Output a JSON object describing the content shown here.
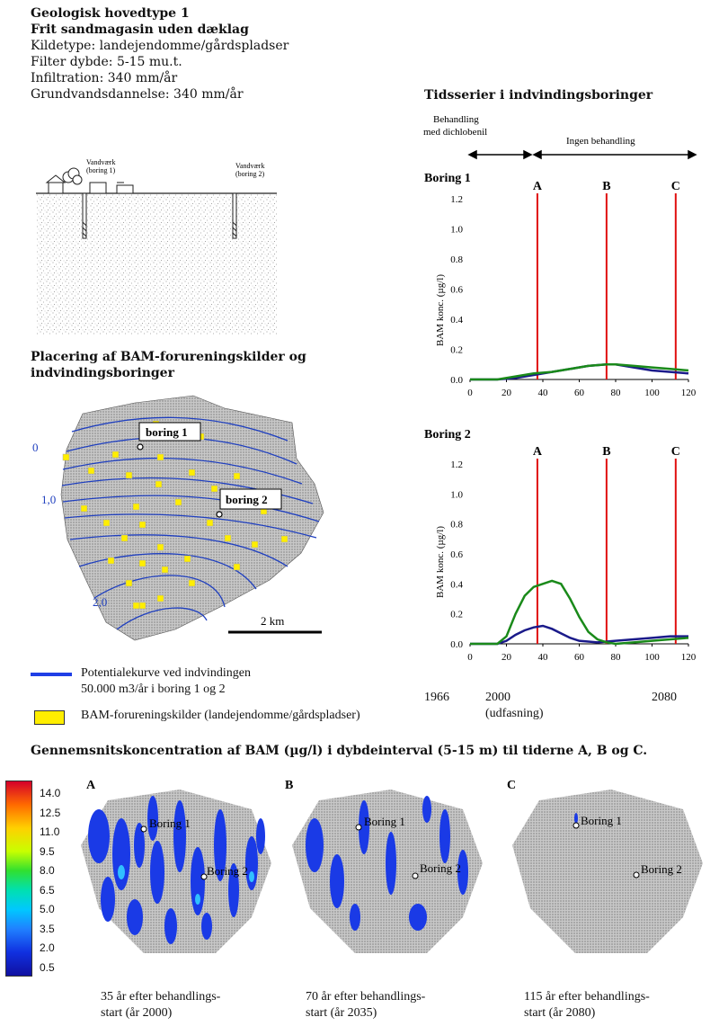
{
  "header": {
    "title1": "Geologisk hovedtype 1",
    "title2": "Frit sandmagasin uden dæklag",
    "lines": [
      "Kildetype: landejendomme/gårdspladser",
      "Filter dybde: 5-15 mu.t.",
      "Infiltration: 340 mm/år",
      "Grundvandsdannelse: 340 mm/år"
    ]
  },
  "cross_section": {
    "label_boring1_a": "Vandværk",
    "label_boring1_b": "(boring 1)",
    "label_boring2_a": "Vandværk",
    "label_boring2_b": "(boring 2)"
  },
  "map_section": {
    "title_line1": "Placering af BAM-forureningskilder og",
    "title_line2": "indvindingsboringer",
    "boring1": "boring 1",
    "boring2": "boring 2",
    "contour_labels": [
      "0",
      "1,0",
      "2,0"
    ],
    "scale_label": "2 km",
    "contour_color": "#1f3fbf",
    "source_color": "#ffee00"
  },
  "legend": {
    "line_item_1": "Potentialekurve ved indvindingen",
    "line_item_2": "50.000 m3/år i boring 1 og 2",
    "source_item": "BAM-forureningskilder (landejendomme/gårdspladser)"
  },
  "timeseries": {
    "title": "Tidsserier i indvindingsboringer",
    "period1_a": "Behandling",
    "period1_b": "med dichlobenil",
    "period2": "Ingen behandling",
    "year_labels": {
      "y1966": "1966",
      "y2000": "2000",
      "y2000_note": "(udfasning)",
      "y2080": "2080"
    }
  },
  "chart_data": [
    {
      "type": "line",
      "title": "Boring 1",
      "ylabel": "BAM konc. (µg/l)",
      "xlabel": "",
      "xlim": [
        0,
        120
      ],
      "ylim": [
        0,
        1.2
      ],
      "x_ticks": [
        0,
        20,
        40,
        60,
        80,
        100,
        120
      ],
      "y_ticks": [
        "0.0",
        "0.2",
        "0.4",
        "0.6",
        "0.8",
        "1.0",
        "1.2"
      ],
      "markers": [
        {
          "label": "A",
          "x": 37
        },
        {
          "label": "B",
          "x": 75
        },
        {
          "label": "C",
          "x": 113
        }
      ],
      "series": [
        {
          "color": "#1a1a8a",
          "x": [
            0,
            15,
            25,
            35,
            45,
            55,
            65,
            75,
            80,
            90,
            100,
            110,
            120
          ],
          "values": [
            0,
            0,
            0.01,
            0.03,
            0.05,
            0.07,
            0.09,
            0.1,
            0.1,
            0.08,
            0.06,
            0.05,
            0.04
          ]
        },
        {
          "color": "#1a8a1a",
          "x": [
            0,
            15,
            25,
            35,
            45,
            55,
            65,
            75,
            80,
            90,
            100,
            110,
            120
          ],
          "values": [
            0,
            0,
            0.02,
            0.04,
            0.05,
            0.07,
            0.09,
            0.1,
            0.1,
            0.09,
            0.08,
            0.07,
            0.06
          ]
        }
      ]
    },
    {
      "type": "line",
      "title": "Boring 2",
      "ylabel": "BAM konc. (µg/l)",
      "xlabel": "",
      "xlim": [
        0,
        120
      ],
      "ylim": [
        0,
        1.2
      ],
      "x_ticks": [
        0,
        20,
        40,
        60,
        80,
        100,
        120
      ],
      "y_ticks": [
        "0.0",
        "0.2",
        "0.4",
        "0.6",
        "0.8",
        "1.0",
        "1.2"
      ],
      "markers": [
        {
          "label": "A",
          "x": 37
        },
        {
          "label": "B",
          "x": 75
        },
        {
          "label": "C",
          "x": 113
        }
      ],
      "series": [
        {
          "color": "#1a1a8a",
          "x": [
            0,
            15,
            20,
            25,
            30,
            35,
            40,
            45,
            50,
            55,
            60,
            70,
            80,
            90,
            100,
            110,
            120
          ],
          "values": [
            0,
            0,
            0.02,
            0.06,
            0.09,
            0.11,
            0.12,
            0.1,
            0.07,
            0.04,
            0.02,
            0.01,
            0.02,
            0.03,
            0.04,
            0.05,
            0.05
          ]
        },
        {
          "color": "#1a8a1a",
          "x": [
            0,
            15,
            20,
            25,
            30,
            35,
            40,
            45,
            50,
            55,
            60,
            65,
            70,
            75,
            80,
            90,
            100,
            110,
            120
          ],
          "values": [
            0,
            0,
            0.05,
            0.2,
            0.32,
            0.38,
            0.4,
            0.42,
            0.4,
            0.3,
            0.18,
            0.08,
            0.03,
            0.01,
            0.0,
            0.01,
            0.02,
            0.03,
            0.04
          ]
        }
      ]
    }
  ],
  "bottom": {
    "title": "Gennemsnitskoncentration af BAM (µg/l) i dybdeinterval (5-15 m) til tiderne A, B og C.",
    "colorbar": [
      "14.0",
      "12.5",
      "11.0",
      "9.5",
      "8.0",
      "6.5",
      "5.0",
      "3.5",
      "2.0",
      "0.5"
    ],
    "maps": [
      {
        "letter": "A",
        "boring1": "Boring 1",
        "boring2": "Boring 2",
        "caption1": "35 år efter behandlings-",
        "caption2": "start (år 2000)"
      },
      {
        "letter": "B",
        "boring1": "Boring 1",
        "boring2": "Boring 2",
        "caption1": "70 år efter behandlings-",
        "caption2": "start (år 2035)"
      },
      {
        "letter": "C",
        "boring1": "Boring 1",
        "boring2": "Boring 2",
        "caption1": "115 år efter behandlings-",
        "caption2": "start (år 2080)"
      }
    ]
  }
}
